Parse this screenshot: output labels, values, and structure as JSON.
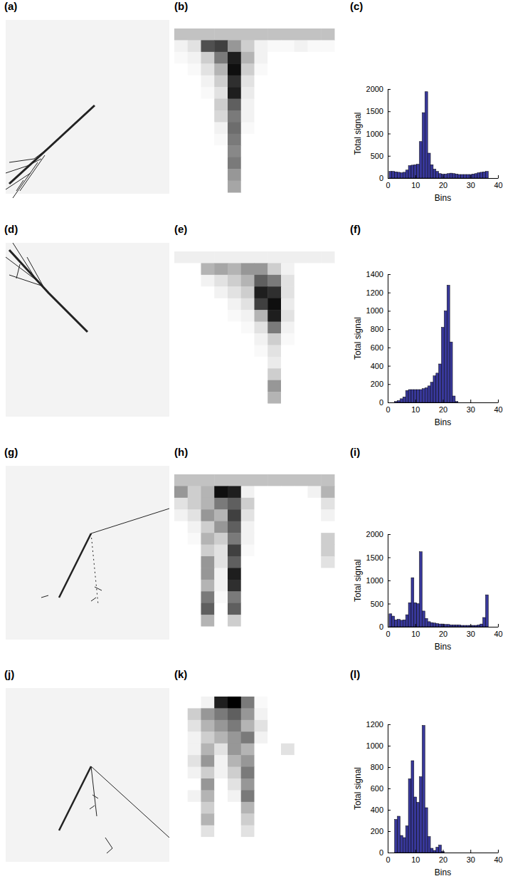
{
  "chart_data": [
    {
      "type": "histogram",
      "panel_label": "(c)",
      "x_label": "Bins",
      "y_label": "Total signal",
      "color": "#38389a",
      "bins": [
        0.5,
        1.5,
        2.5,
        3.5,
        4.5,
        5.5,
        6.5,
        7.5,
        8.5,
        9.5,
        10.5,
        11.5,
        12.5,
        13.5,
        14.5,
        15.5,
        16.5,
        17.5,
        18.5,
        19.5,
        20.5,
        21.5,
        22.5,
        23.5,
        24.5,
        25.5,
        26.5,
        27.5,
        28.5,
        29.5,
        30.5,
        31.5,
        32.5,
        33.5,
        34.5,
        35.5,
        36.5
      ],
      "values": [
        150,
        150,
        140,
        130,
        120,
        130,
        180,
        280,
        290,
        300,
        310,
        820,
        1470,
        1940,
        560,
        300,
        200,
        150,
        100,
        90,
        90,
        100,
        110,
        100,
        90,
        80,
        80,
        80,
        80,
        80,
        90,
        100,
        120,
        130,
        140,
        150
      ],
      "xlim": [
        0,
        40
      ],
      "xticks": [
        0,
        10,
        20,
        30,
        40
      ],
      "ylim": [
        0,
        2000
      ],
      "yticks": [
        0,
        500,
        1000,
        1500,
        2000
      ]
    },
    {
      "type": "histogram",
      "panel_label": "(f)",
      "x_label": "Bins",
      "y_label": "Total signal",
      "color": "#38389a",
      "bins": [
        0.5,
        1.5,
        2.5,
        3.5,
        4.5,
        5.5,
        6.5,
        7.5,
        8.5,
        9.5,
        10.5,
        11.5,
        12.5,
        13.5,
        14.5,
        15.5,
        16.5,
        17.5,
        18.5,
        19.5,
        20.5,
        21.5,
        22.5,
        23.5,
        24.5,
        25.5,
        26.5,
        27.5,
        28.5,
        29.5,
        30.5,
        31.5,
        32.5,
        33.5,
        34.5,
        35.5,
        36.5
      ],
      "values": [
        0,
        0,
        10,
        20,
        40,
        60,
        130,
        140,
        140,
        140,
        140,
        140,
        150,
        160,
        180,
        220,
        290,
        320,
        420,
        820,
        1000,
        1280,
        660,
        70,
        10,
        0,
        0,
        0,
        0,
        0,
        0,
        0,
        0,
        0,
        0,
        0
      ],
      "xlim": [
        0,
        40
      ],
      "xticks": [
        0,
        10,
        20,
        30,
        40
      ],
      "ylim": [
        0,
        1400
      ],
      "yticks": [
        0,
        200,
        400,
        600,
        800,
        1000,
        1200,
        1400
      ]
    },
    {
      "type": "histogram",
      "panel_label": "(i)",
      "x_label": "Bins",
      "y_label": "Total signal",
      "color": "#38389a",
      "bins": [
        0.5,
        1.5,
        2.5,
        3.5,
        4.5,
        5.5,
        6.5,
        7.5,
        8.5,
        9.5,
        10.5,
        11.5,
        12.5,
        13.5,
        14.5,
        15.5,
        16.5,
        17.5,
        18.5,
        19.5,
        20.5,
        21.5,
        22.5,
        23.5,
        24.5,
        25.5,
        26.5,
        27.5,
        28.5,
        29.5,
        30.5,
        31.5,
        32.5,
        33.5,
        34.5,
        35.5,
        36.5
      ],
      "values": [
        280,
        230,
        150,
        160,
        140,
        150,
        260,
        520,
        1060,
        520,
        500,
        1620,
        340,
        180,
        110,
        90,
        80,
        70,
        60,
        60,
        50,
        50,
        40,
        40,
        40,
        40,
        30,
        30,
        30,
        30,
        30,
        30,
        40,
        60,
        200,
        690
      ],
      "xlim": [
        0,
        40
      ],
      "xticks": [
        0,
        10,
        20,
        30,
        40
      ],
      "ylim": [
        0,
        2000
      ],
      "yticks": [
        0,
        500,
        1000,
        1500,
        2000
      ]
    },
    {
      "type": "histogram",
      "panel_label": "(l)",
      "x_label": "Bins",
      "y_label": "Total signal",
      "color": "#38389a",
      "bins": [
        0.5,
        1.5,
        2.5,
        3.5,
        4.5,
        5.5,
        6.5,
        7.5,
        8.5,
        9.5,
        10.5,
        11.5,
        12.5,
        13.5,
        14.5,
        15.5,
        16.5,
        17.5,
        18.5,
        19.5,
        20.5,
        21.5,
        22.5,
        23.5,
        24.5,
        25.5,
        26.5,
        27.5,
        28.5,
        29.5,
        30.5,
        31.5,
        32.5,
        33.5,
        34.5,
        35.5,
        36.5
      ],
      "values": [
        0,
        0,
        310,
        340,
        160,
        140,
        250,
        690,
        860,
        520,
        470,
        710,
        1190,
        420,
        150,
        40,
        20,
        50,
        70,
        10,
        0,
        0,
        0,
        0,
        0,
        0,
        0,
        0,
        0,
        0,
        0,
        0,
        0,
        0,
        0,
        0
      ],
      "xlim": [
        0,
        40
      ],
      "xticks": [
        0,
        10,
        20,
        30,
        40
      ],
      "ylim": [
        0,
        1200
      ],
      "yticks": [
        0,
        200,
        400,
        600,
        800,
        1000,
        1200
      ]
    }
  ],
  "images": [
    {
      "panel_label": "(a)"
    },
    {
      "panel_label": "(d)"
    },
    {
      "panel_label": "(g)"
    },
    {
      "panel_label": "(j)"
    }
  ],
  "heatmaps": [
    {
      "panel_label": "(b)",
      "cells": [
        [
          0.35,
          0.35,
          0.35,
          0.35,
          0.35,
          0.35,
          0.35,
          0.35,
          0.35,
          0.35,
          0.35,
          0.35
        ],
        [
          0.1,
          0.2,
          0.75,
          0.8,
          0.5,
          0.3,
          0.1,
          0.05,
          0.05,
          0.1,
          0.05,
          0.05
        ],
        [
          0.05,
          0.1,
          0.3,
          0.6,
          0.9,
          0.4,
          0.1,
          0,
          0,
          0,
          0,
          0
        ],
        [
          0,
          0.05,
          0.2,
          0.4,
          0.95,
          0.3,
          0.05,
          0,
          0,
          0,
          0,
          0
        ],
        [
          0,
          0,
          0.1,
          0.3,
          0.85,
          0.2,
          0,
          0,
          0,
          0,
          0,
          0
        ],
        [
          0,
          0,
          0.05,
          0.2,
          0.9,
          0.15,
          0,
          0,
          0,
          0,
          0,
          0
        ],
        [
          0,
          0,
          0,
          0.3,
          0.7,
          0.1,
          0,
          0,
          0,
          0,
          0,
          0
        ],
        [
          0,
          0,
          0,
          0.25,
          0.6,
          0.1,
          0,
          0,
          0,
          0,
          0,
          0
        ],
        [
          0,
          0,
          0,
          0.1,
          0.65,
          0.05,
          0,
          0,
          0,
          0,
          0,
          0
        ],
        [
          0,
          0,
          0,
          0.05,
          0.6,
          0,
          0,
          0,
          0,
          0,
          0,
          0
        ],
        [
          0,
          0,
          0,
          0,
          0.55,
          0,
          0,
          0,
          0,
          0,
          0,
          0
        ],
        [
          0,
          0,
          0,
          0,
          0.6,
          0,
          0,
          0,
          0,
          0,
          0,
          0
        ],
        [
          0,
          0,
          0,
          0,
          0.5,
          0,
          0,
          0,
          0,
          0,
          0,
          0
        ],
        [
          0,
          0,
          0,
          0,
          0.45,
          0,
          0,
          0,
          0,
          0,
          0,
          0
        ]
      ]
    },
    {
      "panel_label": "(e)",
      "cells": [
        [
          0.12,
          0.12,
          0.12,
          0.12,
          0.12,
          0.12,
          0.12,
          0.12,
          0.12,
          0.12,
          0.12,
          0.12
        ],
        [
          0,
          0,
          0.4,
          0.45,
          0.4,
          0.5,
          0.5,
          0.3,
          0.1,
          0,
          0,
          0
        ],
        [
          0,
          0,
          0.1,
          0.2,
          0.3,
          0.4,
          0.7,
          0.6,
          0.2,
          0,
          0,
          0
        ],
        [
          0,
          0,
          0,
          0.1,
          0.2,
          0.3,
          0.9,
          0.85,
          0.2,
          0,
          0,
          0
        ],
        [
          0,
          0,
          0,
          0,
          0.1,
          0.2,
          0.8,
          0.95,
          0.15,
          0,
          0,
          0
        ],
        [
          0,
          0,
          0,
          0,
          0.05,
          0.1,
          0.4,
          0.9,
          0.2,
          0,
          0,
          0
        ],
        [
          0,
          0,
          0,
          0,
          0,
          0.05,
          0.2,
          0.6,
          0.1,
          0,
          0,
          0
        ],
        [
          0,
          0,
          0,
          0,
          0,
          0,
          0.1,
          0.3,
          0.05,
          0,
          0,
          0
        ],
        [
          0,
          0,
          0,
          0,
          0,
          0,
          0.05,
          0.2,
          0,
          0,
          0,
          0
        ],
        [
          0,
          0,
          0,
          0,
          0,
          0,
          0,
          0.15,
          0,
          0,
          0,
          0
        ],
        [
          0,
          0,
          0,
          0,
          0,
          0,
          0,
          0.3,
          0,
          0,
          0,
          0
        ],
        [
          0,
          0,
          0,
          0,
          0,
          0,
          0,
          0.5,
          0,
          0,
          0,
          0
        ],
        [
          0,
          0,
          0,
          0,
          0,
          0,
          0,
          0.4,
          0,
          0,
          0,
          0
        ],
        [
          0,
          0,
          0,
          0,
          0,
          0,
          0,
          0,
          0,
          0,
          0,
          0
        ]
      ]
    },
    {
      "panel_label": "(h)",
      "cells": [
        [
          0.35,
          0.35,
          0.35,
          0.35,
          0.35,
          0.35,
          0.35,
          0.35,
          0.35,
          0.35,
          0.35,
          0.35
        ],
        [
          0.5,
          0.3,
          0.4,
          0.95,
          0.9,
          0.1,
          0,
          0,
          0,
          0,
          0.1,
          0.4
        ],
        [
          0.2,
          0.3,
          0.4,
          0.6,
          0.7,
          0.3,
          0,
          0,
          0,
          0,
          0,
          0.2
        ],
        [
          0.1,
          0.2,
          0.5,
          0.4,
          0.8,
          0.2,
          0,
          0,
          0,
          0,
          0,
          0.1
        ],
        [
          0,
          0.1,
          0.3,
          0.5,
          0.7,
          0.1,
          0,
          0,
          0,
          0,
          0,
          0
        ],
        [
          0,
          0.05,
          0.4,
          0.3,
          0.6,
          0.1,
          0,
          0,
          0,
          0,
          0,
          0.3
        ],
        [
          0,
          0,
          0.3,
          0.2,
          0.8,
          0.05,
          0,
          0,
          0,
          0,
          0,
          0.3
        ],
        [
          0,
          0,
          0.5,
          0.2,
          0.7,
          0,
          0,
          0,
          0,
          0,
          0,
          0.2
        ],
        [
          0,
          0,
          0.5,
          0.1,
          0.9,
          0,
          0,
          0,
          0,
          0,
          0,
          0
        ],
        [
          0,
          0,
          0.4,
          0.1,
          0.85,
          0,
          0,
          0,
          0,
          0,
          0,
          0
        ],
        [
          0,
          0,
          0.6,
          0.05,
          0.6,
          0,
          0,
          0,
          0,
          0,
          0,
          0
        ],
        [
          0,
          0,
          0.7,
          0,
          0.7,
          0,
          0,
          0,
          0,
          0,
          0,
          0
        ],
        [
          0,
          0,
          0.4,
          0,
          0.3,
          0,
          0,
          0,
          0,
          0,
          0,
          0
        ],
        [
          0,
          0,
          0,
          0,
          0,
          0,
          0,
          0,
          0,
          0,
          0,
          0
        ]
      ]
    },
    {
      "panel_label": "(k)",
      "cells": [
        [
          0,
          0,
          0.1,
          0.9,
          1,
          0.6,
          0.05,
          0,
          0,
          0,
          0,
          0
        ],
        [
          0,
          0.3,
          0.5,
          0.6,
          0.7,
          0.5,
          0.1,
          0,
          0,
          0,
          0,
          0
        ],
        [
          0,
          0.2,
          0.4,
          0.5,
          0.6,
          0.4,
          0.2,
          0,
          0,
          0,
          0,
          0
        ],
        [
          0,
          0.1,
          0.3,
          0.4,
          0.5,
          0.6,
          0.1,
          0,
          0,
          0,
          0,
          0
        ],
        [
          0,
          0.1,
          0.4,
          0.2,
          0.5,
          0.4,
          0,
          0,
          0.2,
          0,
          0,
          0
        ],
        [
          0,
          0.2,
          0.5,
          0.1,
          0.4,
          0.5,
          0,
          0,
          0,
          0,
          0,
          0
        ],
        [
          0,
          0.1,
          0.3,
          0.1,
          0.3,
          0.6,
          0,
          0,
          0,
          0,
          0,
          0
        ],
        [
          0,
          0,
          0.5,
          0,
          0.2,
          0.5,
          0,
          0,
          0,
          0,
          0,
          0
        ],
        [
          0,
          0.1,
          0.4,
          0,
          0.1,
          0.6,
          0,
          0,
          0,
          0,
          0,
          0
        ],
        [
          0,
          0,
          0.3,
          0,
          0,
          0.4,
          0,
          0,
          0,
          0,
          0,
          0
        ],
        [
          0,
          0,
          0.4,
          0,
          0,
          0.3,
          0,
          0,
          0,
          0,
          0,
          0
        ],
        [
          0,
          0,
          0.2,
          0,
          0,
          0.2,
          0,
          0,
          0,
          0,
          0,
          0
        ],
        [
          0,
          0,
          0,
          0,
          0,
          0,
          0,
          0,
          0,
          0,
          0,
          0
        ],
        [
          0,
          0,
          0,
          0,
          0,
          0,
          0,
          0,
          0,
          0,
          0,
          0
        ]
      ]
    }
  ]
}
